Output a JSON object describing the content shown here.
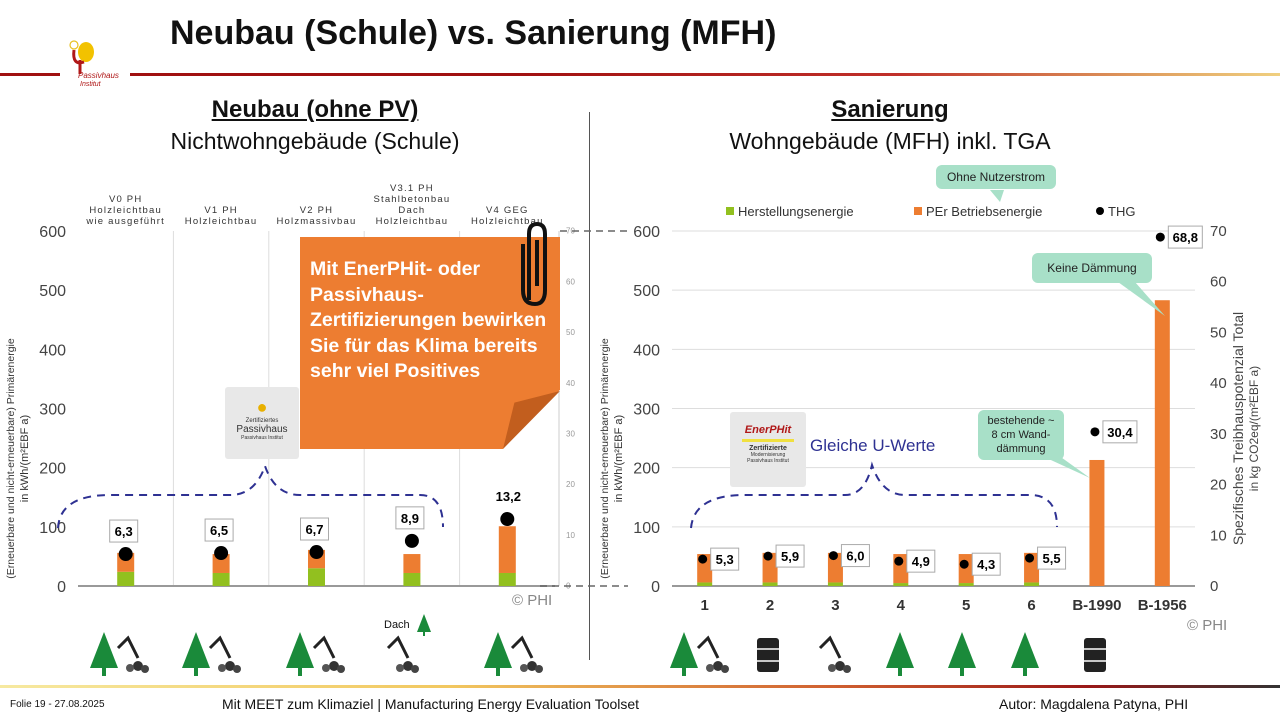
{
  "title": "Neubau (Schule) vs. Sanierung (MFH)",
  "logo": {
    "text": "Passivhaus Institut"
  },
  "left": {
    "heading": "Neubau (ohne PV)",
    "subheading": "Nichtwohngebäude (Schule)"
  },
  "right": {
    "heading": "Sanierung",
    "subheading": "Wohngebäude (MFH) inkl. TGA"
  },
  "note": "Mit EnerPHit- oder Passivhaus-Zertifizierungen bewirken Sie für das Klima bereits sehr viel Positives",
  "callouts": {
    "ohne": "Ohne Nutzerstrom",
    "keine": "Keine Dämmung",
    "bestehende": "bestehende ~ 8 cm Wand-dämmung"
  },
  "certs": {
    "passivhaus": {
      "top": "Zertifiziertes",
      "main": "Passivhaus",
      "sub": "Passivhaus Institut"
    },
    "enerphit": {
      "main": "EnerPHit",
      "top": "Zertifizierte",
      "mid": "Modernisierung",
      "sub": "Passivhaus Institut"
    }
  },
  "gleiche": "Gleiche U-Werte",
  "dach_label": "Dach",
  "copyright": "© PHI",
  "colors": {
    "green": "#92c01f",
    "orange": "#ed7d31",
    "ghg": "#000000",
    "brace": "#2e3192",
    "callout": "#a8e0c8"
  },
  "footer": {
    "left": "Folie 19 - 27.08.2025",
    "center": "Mit MEET zum Klimaziel | Manufacturing Energy Evaluation Toolset",
    "right": "Autor: Magdalena Patyna, PHI"
  },
  "chart_data": [
    {
      "type": "bar",
      "stacked": true,
      "categories": [
        "V0 PH Holzleichtbau wie ausgeführt",
        "V1 PH Holzleichtbau",
        "V2 PH Holzmassivbau",
        "V3.1 PH Stahlbetonbau Dach Holzleichtbau",
        "V4 GEG Holzleichtbau"
      ],
      "category_lines": [
        [
          "V0 PH",
          "Holzleichtbau",
          "wie ausgeführt"
        ],
        [
          "V1 PH",
          "Holzleichtbau"
        ],
        [
          "V2 PH",
          "Holzmassivbau"
        ],
        [
          "V3.1 PH",
          "Stahlbetonbau",
          "Dach",
          "Holzleichtbau"
        ],
        [
          "V4 GEG",
          "Holzleichtbau"
        ]
      ],
      "ylabel": "(Erneuerbare und nicht-erneuerbare) Primärenergie",
      "ylabel2": "in kWh/(m²EBF a)",
      "ylim": [
        0,
        600
      ],
      "yticks": [
        0,
        100,
        200,
        300,
        400,
        500,
        600
      ],
      "y2lim": [
        0,
        70
      ],
      "y2ticks": [
        0,
        10,
        20,
        30,
        40,
        50,
        60,
        70
      ],
      "series": [
        {
          "name": "Herstellungsenergie",
          "values": [
            24,
            22,
            30,
            22,
            22
          ]
        },
        {
          "name": "PEr Betriebsenergie",
          "values": [
            32,
            32,
            31,
            32,
            79
          ]
        }
      ],
      "ghg": {
        "name": "THG",
        "values": [
          6.3,
          6.5,
          6.7,
          8.9,
          13.2
        ],
        "labels": [
          "6,3",
          "6,5",
          "6,7",
          "8,9",
          "13,2"
        ]
      },
      "grid": "vertical"
    },
    {
      "type": "bar",
      "stacked": true,
      "categories": [
        "1",
        "2",
        "3",
        "4",
        "5",
        "6",
        "B-1990",
        "B-1956"
      ],
      "ylabel": "(Erneuerbare und nicht-erneuerbare) Primärenergie",
      "ylabel2": "in kWh/(m²EBF a)",
      "y2label": "Spezifisches Treibhauspotenzial Total",
      "y2label2": "in kg CO2eq/(m²EBF a)",
      "ylim": [
        0,
        600
      ],
      "yticks": [
        0,
        100,
        200,
        300,
        400,
        500,
        600
      ],
      "y2lim": [
        0,
        70
      ],
      "y2ticks": [
        0,
        10,
        20,
        30,
        40,
        50,
        60,
        70
      ],
      "legend": "top",
      "series": [
        {
          "name": "Herstellungsenergie",
          "values": [
            6,
            6,
            6,
            5,
            5,
            6,
            0,
            0
          ]
        },
        {
          "name": "PEr Betriebsenergie",
          "values": [
            48,
            50,
            50,
            49,
            49,
            50,
            213,
            483
          ]
        }
      ],
      "ghg": {
        "name": "THG",
        "values": [
          5.3,
          5.9,
          6.0,
          4.9,
          4.3,
          5.5,
          30.4,
          68.8
        ],
        "labels": [
          "5,3",
          "5,9",
          "6,0",
          "4,9",
          "4,3",
          "5,5",
          "30,4",
          "68,8"
        ]
      },
      "grid": "horizontal"
    }
  ],
  "icons": {
    "left": [
      "tree-excavator",
      "tree-excavator",
      "tree-excavator",
      "excavator-tree-roof",
      "tree-excavator"
    ],
    "right": [
      "tree-excavator",
      "oil-barrel",
      "excavator",
      "tree",
      "tree",
      "tree",
      "oil-barrel"
    ]
  }
}
